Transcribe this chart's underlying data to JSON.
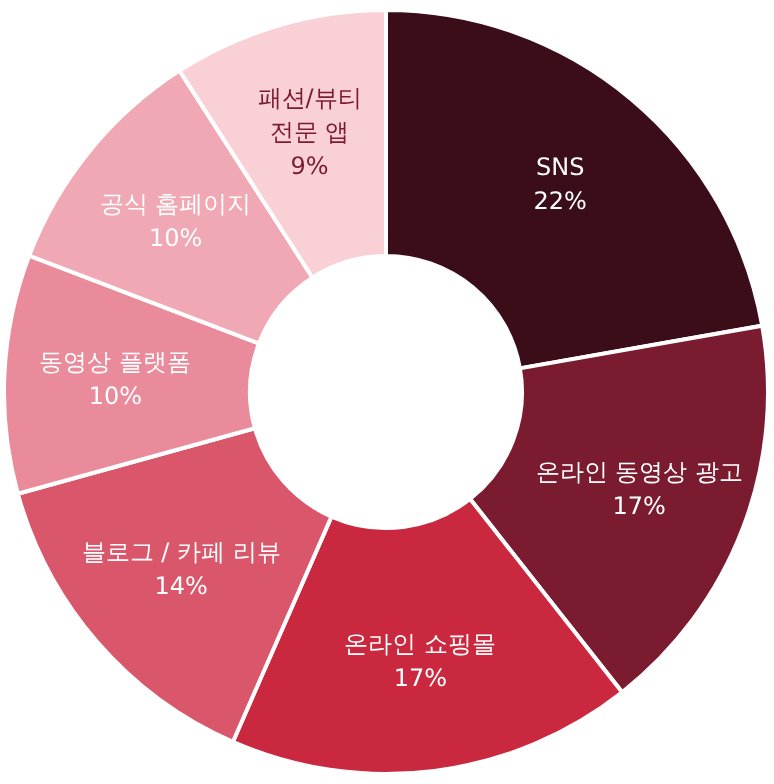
{
  "chart_data": {
    "type": "donut",
    "categories": [
      "SNS",
      "온라인 동영상 광고",
      "온라인 쇼핑몰",
      "블로그 / 카페 리뷰",
      "동영상 플랫폼",
      "공식 홈페이지",
      "패션/뷰티\n전문 앱"
    ],
    "values": [
      22,
      17,
      17,
      14,
      10,
      10,
      9
    ],
    "colors": [
      "#3b0d18",
      "#7b1b2f",
      "#c9283f",
      "#d9566b",
      "#e98b9b",
      "#f0a9b4",
      "#f8d0d6"
    ],
    "value_labels": [
      "22%",
      "17%",
      "17%",
      "14%",
      "10%",
      "10%",
      "9%"
    ]
  }
}
